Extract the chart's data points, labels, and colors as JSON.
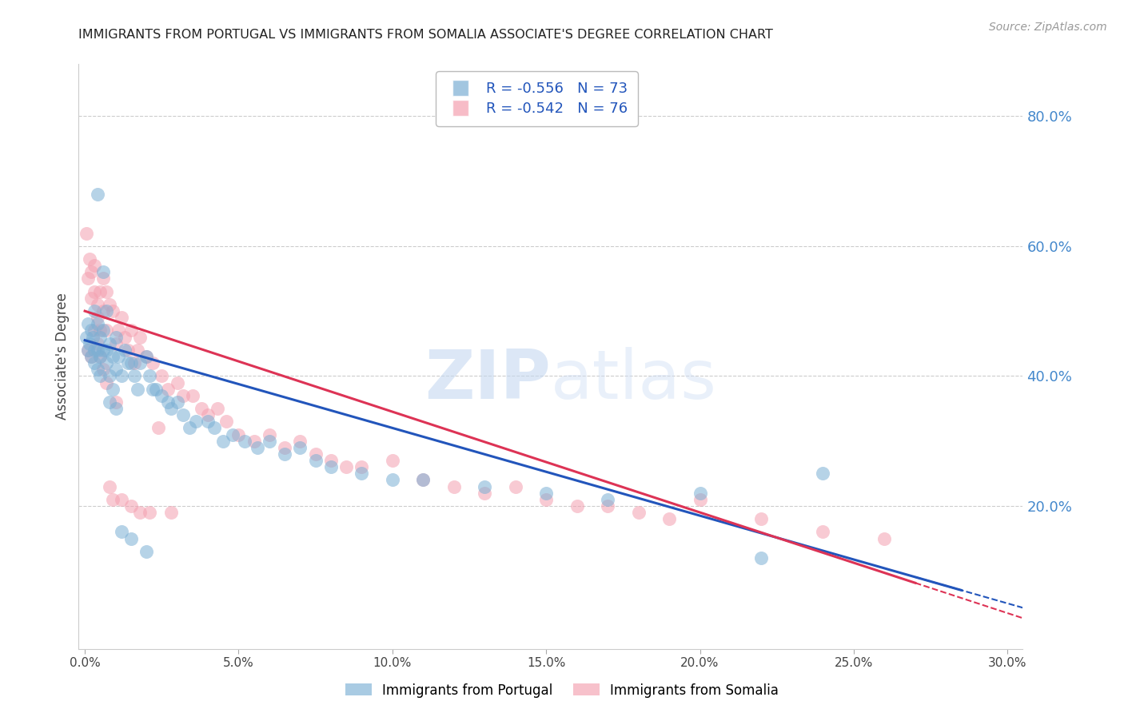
{
  "title": "IMMIGRANTS FROM PORTUGAL VS IMMIGRANTS FROM SOMALIA ASSOCIATE'S DEGREE CORRELATION CHART",
  "source": "Source: ZipAtlas.com",
  "ylabel": "Associate's Degree",
  "watermark_zip": "ZIP",
  "watermark_atlas": "atlas",
  "xlim": [
    -0.002,
    0.305
  ],
  "ylim": [
    -0.02,
    0.88
  ],
  "xticks": [
    0.0,
    0.05,
    0.1,
    0.15,
    0.2,
    0.25,
    0.3
  ],
  "xtick_labels": [
    "0.0%",
    "5.0%",
    "10.0%",
    "15.0%",
    "20.0%",
    "25.0%",
    "30.0%"
  ],
  "yticks_right": [
    0.2,
    0.4,
    0.6,
    0.8
  ],
  "ytick_labels_right": [
    "20.0%",
    "40.0%",
    "60.0%",
    "80.0%"
  ],
  "portugal_color": "#7bafd4",
  "somalia_color": "#f4a0b0",
  "portugal_line_color": "#2255bb",
  "somalia_line_color": "#dd3355",
  "portugal_R": -0.556,
  "portugal_N": 73,
  "somalia_R": -0.542,
  "somalia_N": 76,
  "legend_label_portugal": "Immigrants from Portugal",
  "legend_label_somalia": "Immigrants from Somalia",
  "portugal_scatter_x": [
    0.0005,
    0.001,
    0.001,
    0.0015,
    0.002,
    0.002,
    0.0025,
    0.003,
    0.003,
    0.003,
    0.004,
    0.004,
    0.004,
    0.005,
    0.005,
    0.005,
    0.006,
    0.006,
    0.007,
    0.007,
    0.007,
    0.008,
    0.008,
    0.009,
    0.009,
    0.01,
    0.01,
    0.011,
    0.012,
    0.013,
    0.014,
    0.015,
    0.016,
    0.017,
    0.018,
    0.02,
    0.021,
    0.022,
    0.023,
    0.025,
    0.027,
    0.028,
    0.03,
    0.032,
    0.034,
    0.036,
    0.04,
    0.042,
    0.045,
    0.048,
    0.052,
    0.056,
    0.06,
    0.065,
    0.07,
    0.075,
    0.08,
    0.09,
    0.1,
    0.11,
    0.13,
    0.15,
    0.17,
    0.2,
    0.22,
    0.24,
    0.004,
    0.006,
    0.008,
    0.01,
    0.012,
    0.015,
    0.02
  ],
  "portugal_scatter_y": [
    0.46,
    0.44,
    0.48,
    0.45,
    0.47,
    0.43,
    0.46,
    0.5,
    0.44,
    0.42,
    0.48,
    0.44,
    0.41,
    0.46,
    0.43,
    0.4,
    0.47,
    0.44,
    0.5,
    0.44,
    0.42,
    0.45,
    0.4,
    0.43,
    0.38,
    0.46,
    0.41,
    0.43,
    0.4,
    0.44,
    0.42,
    0.42,
    0.4,
    0.38,
    0.42,
    0.43,
    0.4,
    0.38,
    0.38,
    0.37,
    0.36,
    0.35,
    0.36,
    0.34,
    0.32,
    0.33,
    0.33,
    0.32,
    0.3,
    0.31,
    0.3,
    0.29,
    0.3,
    0.28,
    0.29,
    0.27,
    0.26,
    0.25,
    0.24,
    0.24,
    0.23,
    0.22,
    0.21,
    0.22,
    0.12,
    0.25,
    0.68,
    0.56,
    0.36,
    0.35,
    0.16,
    0.15,
    0.13
  ],
  "somalia_scatter_x": [
    0.0005,
    0.001,
    0.0015,
    0.002,
    0.002,
    0.003,
    0.003,
    0.004,
    0.004,
    0.005,
    0.005,
    0.006,
    0.006,
    0.007,
    0.007,
    0.008,
    0.009,
    0.01,
    0.011,
    0.012,
    0.013,
    0.014,
    0.015,
    0.016,
    0.017,
    0.018,
    0.02,
    0.022,
    0.025,
    0.027,
    0.03,
    0.032,
    0.035,
    0.038,
    0.04,
    0.043,
    0.046,
    0.05,
    0.055,
    0.06,
    0.065,
    0.07,
    0.075,
    0.08,
    0.085,
    0.09,
    0.1,
    0.11,
    0.12,
    0.13,
    0.14,
    0.15,
    0.16,
    0.17,
    0.18,
    0.19,
    0.2,
    0.22,
    0.24,
    0.26,
    0.001,
    0.002,
    0.003,
    0.004,
    0.005,
    0.006,
    0.007,
    0.008,
    0.009,
    0.01,
    0.012,
    0.015,
    0.018,
    0.021,
    0.024,
    0.028
  ],
  "somalia_scatter_y": [
    0.62,
    0.55,
    0.58,
    0.52,
    0.56,
    0.53,
    0.57,
    0.51,
    0.49,
    0.53,
    0.47,
    0.55,
    0.5,
    0.47,
    0.53,
    0.51,
    0.5,
    0.45,
    0.47,
    0.49,
    0.46,
    0.44,
    0.47,
    0.42,
    0.44,
    0.46,
    0.43,
    0.42,
    0.4,
    0.38,
    0.39,
    0.37,
    0.37,
    0.35,
    0.34,
    0.35,
    0.33,
    0.31,
    0.3,
    0.31,
    0.29,
    0.3,
    0.28,
    0.27,
    0.26,
    0.26,
    0.27,
    0.24,
    0.23,
    0.22,
    0.23,
    0.21,
    0.2,
    0.2,
    0.19,
    0.18,
    0.21,
    0.18,
    0.16,
    0.15,
    0.44,
    0.43,
    0.47,
    0.45,
    0.43,
    0.41,
    0.39,
    0.23,
    0.21,
    0.36,
    0.21,
    0.2,
    0.19,
    0.19,
    0.32,
    0.19
  ],
  "grid_color": "#cccccc",
  "background_color": "#ffffff",
  "title_color": "#222222",
  "axis_label_color": "#444444",
  "right_tick_color": "#4488cc",
  "bottom_tick_color": "#444444"
}
